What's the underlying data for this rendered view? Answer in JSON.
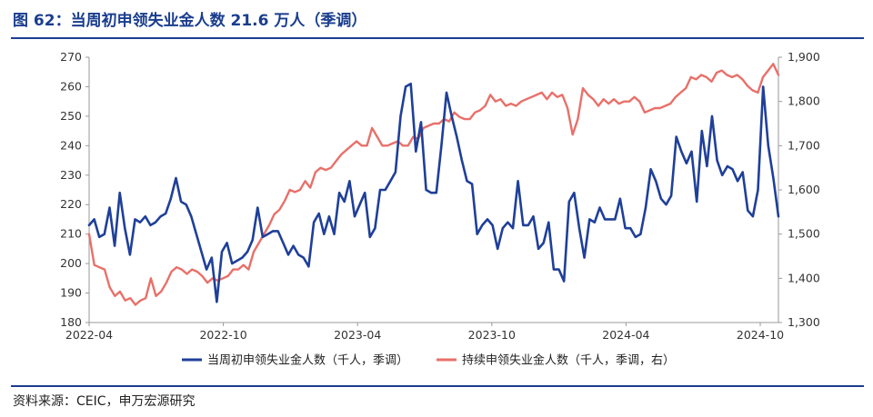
{
  "header": {
    "title": "图 62：当周初申领失业金人数 21.6 万人（季调）"
  },
  "footer": {
    "source": "资料来源：CEIC，申万宏源研究"
  },
  "colors": {
    "title": "#1a3d8f",
    "series_initial": "#1f3f99",
    "series_continuing": "#e8706a"
  },
  "chart_data": {
    "type": "line",
    "x_tick_labels": [
      "2022-04",
      "2022-10",
      "2023-04",
      "2023-10",
      "2024-04",
      "2024-10"
    ],
    "y_left": {
      "ticks": [
        180,
        190,
        200,
        210,
        220,
        230,
        240,
        250,
        260,
        270
      ],
      "range": [
        180,
        270
      ]
    },
    "y_right": {
      "ticks": [
        "1,300",
        "1,400",
        "1,500",
        "1,600",
        "1,700",
        "1,800",
        "1,900"
      ],
      "range": [
        1300,
        1900
      ]
    },
    "legend_position": "bottom",
    "grid": false,
    "series": [
      {
        "name": "当周初申领失业金人数（千人，季调）",
        "axis": "left",
        "values": [
          213,
          215,
          209,
          210,
          219,
          206,
          224,
          212,
          203,
          215,
          214,
          216,
          213,
          214,
          216,
          217,
          222,
          229,
          221,
          220,
          216,
          210,
          204,
          198,
          202,
          187,
          204,
          207,
          200,
          201,
          202,
          204,
          208,
          219,
          209,
          210,
          211,
          211,
          207,
          203,
          206,
          203,
          202,
          199,
          214,
          217,
          210,
          216,
          210,
          224,
          221,
          228,
          216,
          220,
          224,
          209,
          212,
          225,
          225,
          228,
          231,
          250,
          260,
          261,
          238,
          248,
          225,
          224,
          224,
          240,
          258,
          250,
          243,
          235,
          228,
          227,
          210,
          213,
          215,
          213,
          205,
          212,
          214,
          212,
          228,
          213,
          213,
          216,
          205,
          207,
          214,
          198,
          198,
          194,
          221,
          224,
          212,
          202,
          215,
          214,
          219,
          215,
          215,
          215,
          222,
          212,
          212,
          209,
          210,
          219,
          232,
          228,
          222,
          220,
          223,
          243,
          238,
          234,
          238,
          221,
          245,
          233,
          250,
          235,
          230,
          233,
          232,
          228,
          231,
          218,
          216,
          225,
          260,
          240,
          229,
          216
        ]
      },
      {
        "name": "持续申领失业金人数（千人，季调，右）",
        "axis": "right",
        "values": [
          1500,
          1430,
          1425,
          1420,
          1380,
          1360,
          1370,
          1350,
          1355,
          1340,
          1350,
          1355,
          1400,
          1360,
          1370,
          1390,
          1415,
          1425,
          1420,
          1410,
          1420,
          1415,
          1405,
          1390,
          1400,
          1395,
          1400,
          1405,
          1420,
          1420,
          1430,
          1420,
          1460,
          1480,
          1500,
          1520,
          1545,
          1555,
          1575,
          1600,
          1595,
          1600,
          1620,
          1605,
          1640,
          1650,
          1645,
          1650,
          1665,
          1680,
          1690,
          1700,
          1710,
          1700,
          1700,
          1740,
          1720,
          1700,
          1700,
          1705,
          1710,
          1700,
          1700,
          1720,
          1715,
          1740,
          1745,
          1750,
          1750,
          1760,
          1755,
          1775,
          1765,
          1760,
          1760,
          1775,
          1780,
          1790,
          1815,
          1800,
          1805,
          1790,
          1795,
          1790,
          1800,
          1805,
          1810,
          1815,
          1820,
          1805,
          1820,
          1810,
          1815,
          1785,
          1725,
          1760,
          1830,
          1815,
          1805,
          1790,
          1805,
          1795,
          1805,
          1795,
          1800,
          1800,
          1810,
          1800,
          1775,
          1780,
          1785,
          1785,
          1790,
          1795,
          1810,
          1820,
          1830,
          1855,
          1850,
          1860,
          1855,
          1845,
          1865,
          1870,
          1860,
          1855,
          1860,
          1850,
          1835,
          1825,
          1820,
          1855,
          1870,
          1885,
          1860
        ]
      }
    ]
  }
}
